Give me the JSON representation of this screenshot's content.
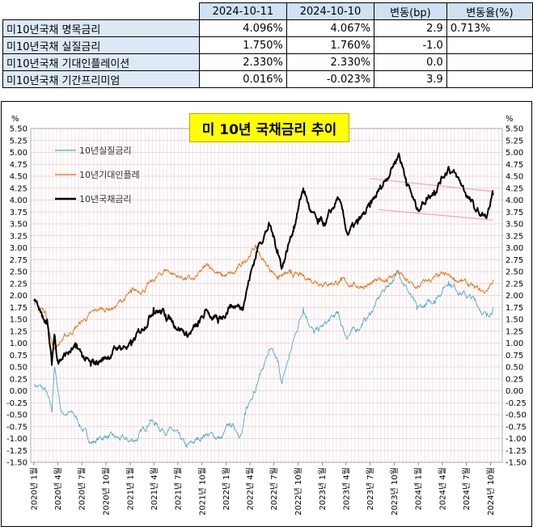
{
  "table": {
    "headers": [
      "",
      "2024-10-11",
      "2024-10-10",
      "변동(bp)",
      "변동율(%)"
    ],
    "rows": [
      {
        "label": "미10년국채 명목금리",
        "v1": "4.096%",
        "v2": "4.067%",
        "bp": "2.9",
        "pct": "0.713%"
      },
      {
        "label": "미10년국채 실질금리",
        "v1": "1.750%",
        "v2": "1.760%",
        "bp": "-1.0",
        "pct": ""
      },
      {
        "label": "미10년국채 기대인플레이션",
        "v1": "2.330%",
        "v2": "2.330%",
        "bp": "0.0",
        "pct": ""
      },
      {
        "label": "미10년국채 기간프리미엄",
        "v1": "0.016%",
        "v2": "-0.023%",
        "bp": "3.9",
        "pct": ""
      }
    ]
  },
  "chart_data": {
    "type": "line",
    "title": "미 10년  국채금리  추이",
    "unit_left": "%",
    "unit_right": "%",
    "ylim": [
      -1.5,
      5.5
    ],
    "y_step": 0.25,
    "grid": true,
    "legend_placement": "top-left",
    "x_tick_labels": [
      "2020년 1월",
      "2020년 4월",
      "2020년 7월",
      "2020년 10월",
      "2021년 1월",
      "2021년 4월",
      "2021년 7월",
      "2021년 10월",
      "2022년 1월",
      "2022년 4월",
      "2022년 7월",
      "2022년 10월",
      "2023년 1월",
      "2023년 4월",
      "2023년 7월",
      "2023년 10월",
      "2024년 1월",
      "2024년 4월",
      "2024년 7월",
      "2024년 10월"
    ],
    "x_tick_dates": [
      "2020-01",
      "2020-04",
      "2020-07",
      "2020-10",
      "2021-01",
      "2021-04",
      "2021-07",
      "2021-10",
      "2022-01",
      "2022-04",
      "2022-07",
      "2022-10",
      "2023-01",
      "2023-04",
      "2023-07",
      "2023-10",
      "2024-01",
      "2024-04",
      "2024-07",
      "2024-10"
    ],
    "series": [
      {
        "name": "10년실질금리",
        "color": "#4bacc6",
        "points": [
          [
            "2020-01-02",
            0.14
          ],
          [
            "2020-02-15",
            0.0
          ],
          [
            "2020-03-09",
            -0.45
          ],
          [
            "2020-03-19",
            0.5
          ],
          [
            "2020-04-15",
            -0.45
          ],
          [
            "2020-06-01",
            -0.5
          ],
          [
            "2020-08-06",
            -1.08
          ],
          [
            "2020-10-01",
            -0.95
          ],
          [
            "2020-12-31",
            -1.06
          ],
          [
            "2021-02-01",
            -0.98
          ],
          [
            "2021-03-18",
            -0.6
          ],
          [
            "2021-05-01",
            -0.8
          ],
          [
            "2021-06-15",
            -0.85
          ],
          [
            "2021-08-04",
            -1.19
          ],
          [
            "2021-10-15",
            -0.9
          ],
          [
            "2021-12-15",
            -1.0
          ],
          [
            "2022-01-15",
            -0.7
          ],
          [
            "2022-03-01",
            -0.9
          ],
          [
            "2022-03-15",
            -0.5
          ],
          [
            "2022-04-15",
            0.0
          ],
          [
            "2022-05-06",
            0.3
          ],
          [
            "2022-06-14",
            0.85
          ],
          [
            "2022-07-15",
            0.6
          ],
          [
            "2022-08-01",
            0.15
          ],
          [
            "2022-09-01",
            0.8
          ],
          [
            "2022-10-21",
            1.75
          ],
          [
            "2022-12-01",
            1.2
          ],
          [
            "2023-01-15",
            1.4
          ],
          [
            "2023-02-28",
            1.62
          ],
          [
            "2023-04-01",
            1.15
          ],
          [
            "2023-05-15",
            1.3
          ],
          [
            "2023-07-01",
            1.6
          ],
          [
            "2023-08-21",
            2.1
          ],
          [
            "2023-10-19",
            2.5
          ],
          [
            "2023-11-15",
            2.2
          ],
          [
            "2023-12-27",
            1.7
          ],
          [
            "2024-02-01",
            1.8
          ],
          [
            "2024-03-01",
            1.9
          ],
          [
            "2024-04-25",
            2.3
          ],
          [
            "2024-06-15",
            2.05
          ],
          [
            "2024-08-01",
            1.9
          ],
          [
            "2024-09-16",
            1.56
          ],
          [
            "2024-10-11",
            1.75
          ]
        ]
      },
      {
        "name": "10년기대인플레",
        "color": "#e46c0a",
        "points": [
          [
            "2020-01-02",
            1.8
          ],
          [
            "2020-02-15",
            1.65
          ],
          [
            "2020-03-09",
            1.0
          ],
          [
            "2020-03-19",
            0.9
          ],
          [
            "2020-04-15",
            1.05
          ],
          [
            "2020-05-15",
            1.2
          ],
          [
            "2020-07-01",
            1.45
          ],
          [
            "2020-09-01",
            1.7
          ],
          [
            "2020-11-01",
            1.75
          ],
          [
            "2021-01-05",
            2.05
          ],
          [
            "2021-03-01",
            2.15
          ],
          [
            "2021-05-17",
            2.55
          ],
          [
            "2021-07-01",
            2.4
          ],
          [
            "2021-09-01",
            2.32
          ],
          [
            "2021-10-25",
            2.65
          ],
          [
            "2021-12-15",
            2.4
          ],
          [
            "2022-02-01",
            2.45
          ],
          [
            "2022-04-21",
            3.02
          ],
          [
            "2022-06-01",
            2.65
          ],
          [
            "2022-07-15",
            2.4
          ],
          [
            "2022-09-01",
            2.45
          ],
          [
            "2022-11-15",
            2.35
          ],
          [
            "2023-01-15",
            2.25
          ],
          [
            "2023-03-15",
            2.3
          ],
          [
            "2023-05-15",
            2.2
          ],
          [
            "2023-07-01",
            2.22
          ],
          [
            "2023-09-01",
            2.35
          ],
          [
            "2023-10-19",
            2.48
          ],
          [
            "2023-11-15",
            2.3
          ],
          [
            "2023-12-27",
            2.15
          ],
          [
            "2024-02-01",
            2.3
          ],
          [
            "2024-04-10",
            2.42
          ],
          [
            "2024-06-15",
            2.3
          ],
          [
            "2024-08-01",
            2.15
          ],
          [
            "2024-09-10",
            2.05
          ],
          [
            "2024-10-11",
            2.33
          ]
        ]
      },
      {
        "name": "10년국채금리",
        "color": "#000000",
        "points": [
          [
            "2020-01-02",
            1.88
          ],
          [
            "2020-02-01",
            1.55
          ],
          [
            "2020-02-20",
            1.5
          ],
          [
            "2020-03-09",
            0.54
          ],
          [
            "2020-03-19",
            1.18
          ],
          [
            "2020-04-01",
            0.65
          ],
          [
            "2020-06-08",
            0.9
          ],
          [
            "2020-08-04",
            0.52
          ],
          [
            "2020-10-01",
            0.7
          ],
          [
            "2020-11-15",
            0.9
          ],
          [
            "2021-01-05",
            0.95
          ],
          [
            "2021-02-15",
            1.3
          ],
          [
            "2021-03-31",
            1.74
          ],
          [
            "2021-05-15",
            1.6
          ],
          [
            "2021-07-15",
            1.3
          ],
          [
            "2021-08-04",
            1.17
          ],
          [
            "2021-09-15",
            1.35
          ],
          [
            "2021-10-21",
            1.68
          ],
          [
            "2021-12-01",
            1.42
          ],
          [
            "2022-01-15",
            1.8
          ],
          [
            "2022-03-01",
            1.75
          ],
          [
            "2022-04-01",
            2.4
          ],
          [
            "2022-05-06",
            3.1
          ],
          [
            "2022-06-14",
            3.48
          ],
          [
            "2022-07-15",
            2.95
          ],
          [
            "2022-08-01",
            2.6
          ],
          [
            "2022-09-15",
            3.45
          ],
          [
            "2022-10-21",
            4.25
          ],
          [
            "2022-11-15",
            3.8
          ],
          [
            "2022-12-15",
            3.5
          ],
          [
            "2023-01-15",
            3.5
          ],
          [
            "2023-03-02",
            4.05
          ],
          [
            "2023-04-06",
            3.3
          ],
          [
            "2023-05-15",
            3.5
          ],
          [
            "2023-07-01",
            3.85
          ],
          [
            "2023-08-21",
            4.35
          ],
          [
            "2023-10-19",
            4.98
          ],
          [
            "2023-11-15",
            4.45
          ],
          [
            "2023-12-27",
            3.8
          ],
          [
            "2024-02-01",
            4.05
          ],
          [
            "2024-03-01",
            4.2
          ],
          [
            "2024-04-25",
            4.7
          ],
          [
            "2024-06-15",
            4.3
          ],
          [
            "2024-08-05",
            3.78
          ],
          [
            "2024-09-16",
            3.62
          ],
          [
            "2024-10-11",
            4.1
          ]
        ]
      }
    ],
    "trend_lines": [
      {
        "color": "#f4a6b4",
        "from": [
          "2023-07-01",
          4.45
        ],
        "to": [
          "2024-10-11",
          4.18
        ]
      },
      {
        "color": "#f4a6b4",
        "from": [
          "2023-08-01",
          3.8
        ],
        "to": [
          "2024-10-11",
          3.58
        ]
      }
    ]
  }
}
